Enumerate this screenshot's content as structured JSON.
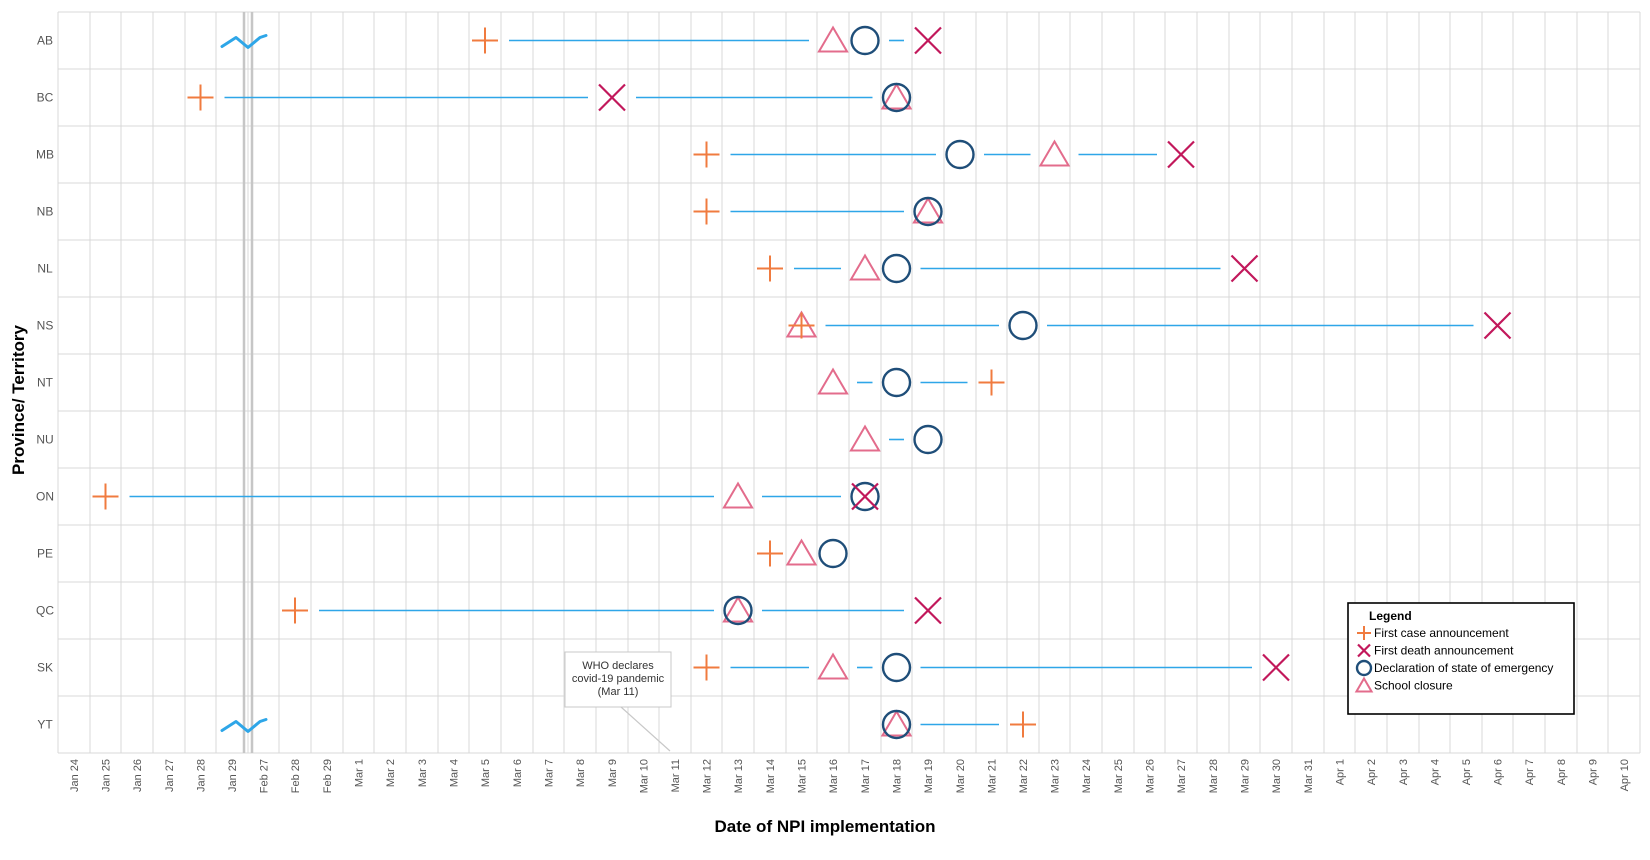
{
  "chart_data": {
    "type": "scatter",
    "xlabel": "Date of NPI implementation",
    "ylabel": "Province/ Territory",
    "x_ticks": [
      "Jan 24",
      "Jan 25",
      "Jan 26",
      "Jan 27",
      "Jan 28",
      "Jan 29",
      "Feb 27",
      "Feb 28",
      "Feb 29",
      "Mar 1",
      "Mar 2",
      "Mar 3",
      "Mar 4",
      "Mar 5",
      "Mar 6",
      "Mar 7",
      "Mar 8",
      "Mar 9",
      "Mar 10",
      "Mar 11",
      "Mar 12",
      "Mar 13",
      "Mar 14",
      "Mar 15",
      "Mar 16",
      "Mar 17",
      "Mar 18",
      "Mar 19",
      "Mar 20",
      "Mar 21",
      "Mar 22",
      "Mar 23",
      "Mar 24",
      "Mar 25",
      "Mar 26",
      "Mar 27",
      "Mar 28",
      "Mar 29",
      "Mar 30",
      "Mar 31",
      "Apr 1",
      "Apr 2",
      "Apr 3",
      "Apr 4",
      "Apr 5",
      "Apr 6",
      "Apr 7",
      "Apr 8",
      "Apr 9",
      "Apr 10"
    ],
    "axis_break": "between Jan 29 and Feb 27",
    "grid": true,
    "legend": {
      "title": "Legend",
      "position": "bottom-right",
      "entries": [
        {
          "key": "first_case",
          "label": "First case announcement",
          "symbol": "plus",
          "color": "#F07B3F"
        },
        {
          "key": "first_death",
          "label": "First death announcement",
          "symbol": "cross",
          "color": "#C2185B"
        },
        {
          "key": "emergency",
          "label": "Declaration of state of emergency",
          "symbol": "circle",
          "color": "#1F4E79"
        },
        {
          "key": "school",
          "label": "School closure",
          "symbol": "triangle",
          "color": "#E36C8C"
        }
      ]
    },
    "annotation": {
      "lines": [
        "WHO declares",
        "covid-19 pandemic",
        "(Mar 11)"
      ],
      "date": "Mar 11"
    },
    "line_color": "#2EA6E8",
    "rows": [
      {
        "label": "AB",
        "first_case": "Mar 5",
        "school": "Mar 16",
        "emergency": "Mar 17",
        "first_death": "Mar 19",
        "break_marker": true
      },
      {
        "label": "BC",
        "first_case": "Jan 28",
        "first_death": "Mar 9",
        "emergency": "Mar 18",
        "school": "Mar 18"
      },
      {
        "label": "MB",
        "first_case": "Mar 12",
        "emergency": "Mar 20",
        "school": "Mar 23",
        "first_death": "Mar 27"
      },
      {
        "label": "NB",
        "first_case": "Mar 12",
        "emergency": "Mar 19",
        "school": "Mar 19"
      },
      {
        "label": "NL",
        "first_case": "Mar 14",
        "school": "Mar 17",
        "emergency": "Mar 18",
        "first_death": "Mar 29"
      },
      {
        "label": "NS",
        "first_case": "Mar 15",
        "school": "Mar 15",
        "emergency": "Mar 22",
        "first_death": "Apr 6"
      },
      {
        "label": "NT",
        "school": "Mar 16",
        "emergency": "Mar 18",
        "first_case": "Mar 21"
      },
      {
        "label": "NU",
        "school": "Mar 17",
        "emergency": "Mar 19"
      },
      {
        "label": "ON",
        "first_case": "Jan 25",
        "school": "Mar 13",
        "emergency": "Mar 17",
        "first_death": "Mar 17"
      },
      {
        "label": "PE",
        "first_case": "Mar 14",
        "school": "Mar 15",
        "emergency": "Mar 16"
      },
      {
        "label": "QC",
        "first_case": "Feb 28",
        "emergency": "Mar 13",
        "school": "Mar 13",
        "first_death": "Mar 19"
      },
      {
        "label": "SK",
        "first_case": "Mar 12",
        "school": "Mar 16",
        "emergency": "Mar 18",
        "first_death": "Mar 30"
      },
      {
        "label": "YT",
        "emergency": "Mar 18",
        "school": "Mar 18",
        "first_case": "Mar 22",
        "break_marker": true
      }
    ]
  }
}
